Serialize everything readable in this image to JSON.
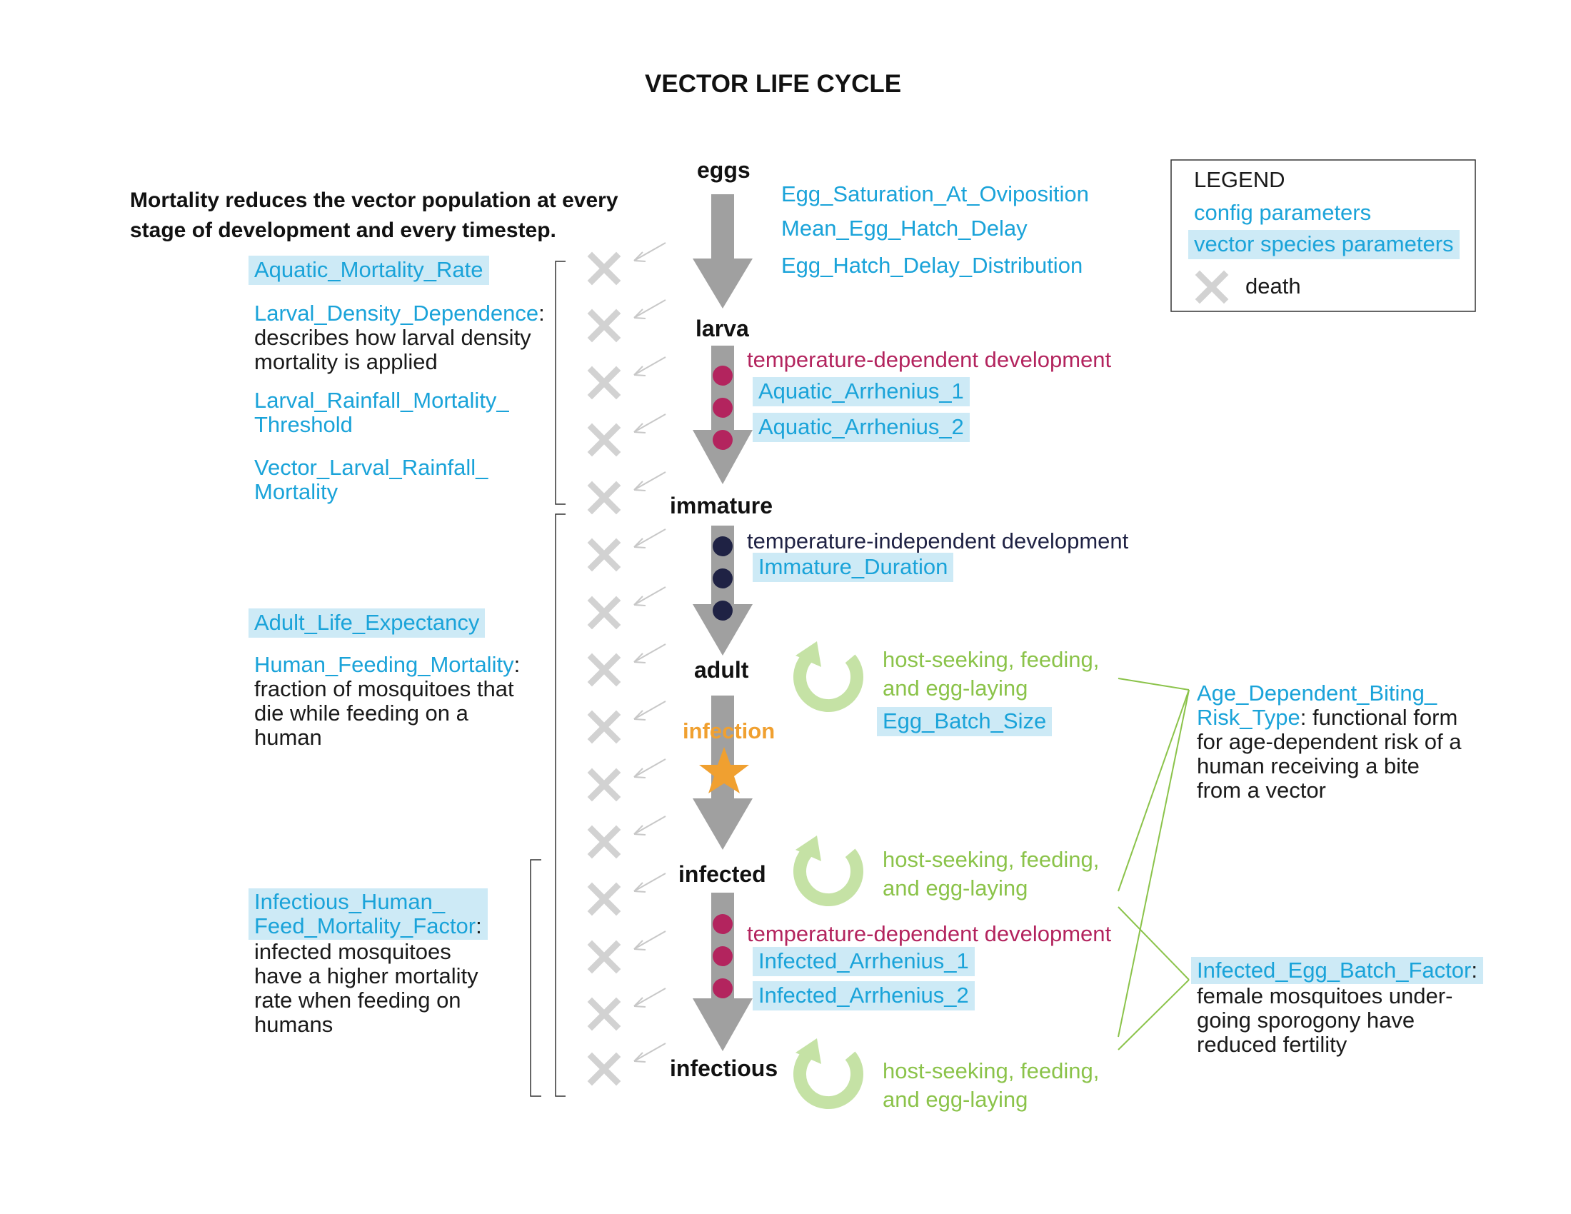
{
  "title": "VECTOR LIFE CYCLE",
  "intro": {
    "line1": "Mortality reduces the vector population at every",
    "line2": "stage of development and every timestep."
  },
  "legend": {
    "heading": "LEGEND",
    "config": "config parameters",
    "vector_species": "vector species parameters",
    "death": "death"
  },
  "stages": {
    "eggs": "eggs",
    "larva": "larva",
    "immature": "immature",
    "adult": "adult",
    "infected": "infected",
    "infectious": "infectious"
  },
  "eggs_params": [
    "Egg_Saturation_At_Oviposition",
    "Mean_Egg_Hatch_Delay",
    "Egg_Hatch_Delay_Distribution"
  ],
  "larva_dev": {
    "label": "temperature-dependent development",
    "params": [
      "Aquatic_Arrhenius_1",
      "Aquatic_Arrhenius_2"
    ]
  },
  "immature_dev": {
    "label": "temperature-independent development",
    "param": "Immature_Duration"
  },
  "infection_label": "infection",
  "infected_dev": {
    "label": "temperature-dependent development",
    "params": [
      "Infected_Arrhenius_1",
      "Infected_Arrhenius_2"
    ]
  },
  "feeding": {
    "line1": "host-seeking, feeding,",
    "line2": "and egg-laying",
    "param": "Egg_Batch_Size"
  },
  "aquatic_mortality": {
    "rate": "Aquatic_Mortality_Rate",
    "density_param": "Larval_Density_Dependence",
    "density_desc_1": "describes how larval density",
    "density_desc_2": "mortality is applied",
    "rainfall_threshold_1": "Larval_Rainfall_Mortality_",
    "rainfall_threshold_2": "Threshold",
    "rainfall_mortality_1": "Vector_Larval_Rainfall_",
    "rainfall_mortality_2": "Mortality"
  },
  "adult_mortality": {
    "life_expectancy": "Adult_Life_Expectancy",
    "feeding_param": "Human_Feeding_Mortality",
    "feeding_desc_1": "fraction of mosquitoes that",
    "feeding_desc_2": "die while feeding on a",
    "feeding_desc_3": "human"
  },
  "infectious_mortality": {
    "param_1": "Infectious_Human_",
    "param_2": "Feed_Mortality_Factor",
    "desc_1": "infected mosquitoes",
    "desc_2": "have a higher mortality",
    "desc_3": "rate when feeding on",
    "desc_4": "humans"
  },
  "biting_risk": {
    "param_1": "Age_Dependent_Biting_",
    "param_2": "Risk_Type",
    "desc_1": "functional form",
    "desc_2": "for age-dependent risk of a",
    "desc_3": "human receiving a bite",
    "desc_4": "from a vector"
  },
  "egg_batch_factor": {
    "param": "Infected_Egg_Batch_Factor",
    "desc_1": "female mosquitoes under-",
    "desc_2": "going sporogony have",
    "desc_3": "reduced fertility"
  },
  "colors": {
    "config_blue": "#1aa3d9",
    "vector_bg": "#cdeaf6",
    "arrow_gray": "#a0a0a0",
    "death_x": "#d2d2d2",
    "temp_dependent": "#b3245e",
    "temp_independent": "#1f2244",
    "feeding_green": "#8bc34a",
    "cycle_green": "#c5e2a5",
    "infection_orange": "#f0a030"
  }
}
